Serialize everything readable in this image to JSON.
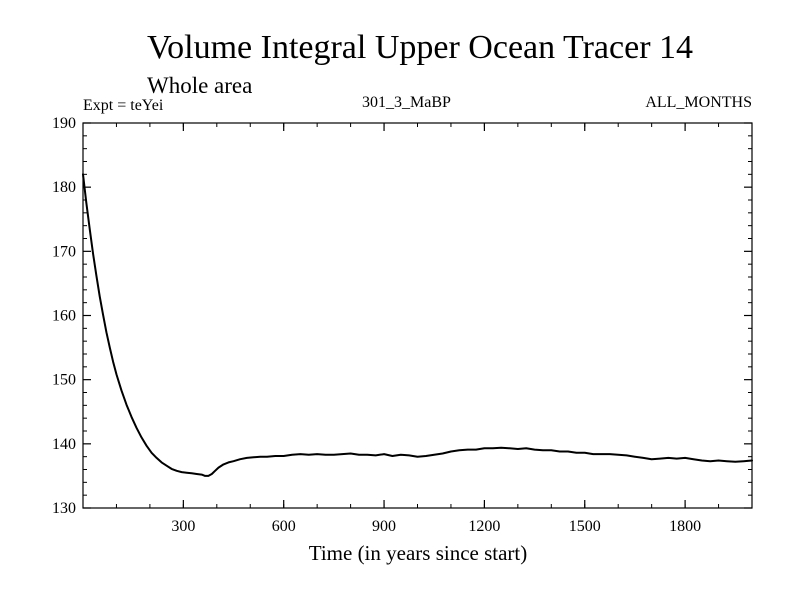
{
  "chart_data": {
    "type": "line",
    "title": "Volume Integral Upper Ocean Tracer 14",
    "subtitle": "Whole area",
    "expt_label": "Expt = teYei",
    "run_label": "301_3_MaBP",
    "months_label": "ALL_MONTHS",
    "xlabel": "Time (in years since start)",
    "ylabel": "",
    "xlim": [
      0,
      2000
    ],
    "ylim": [
      130,
      190
    ],
    "xticks": [
      300,
      600,
      900,
      1200,
      1500,
      1800
    ],
    "yticks": [
      130,
      140,
      150,
      160,
      170,
      180,
      190
    ],
    "xtick_labels": [
      "300",
      "600",
      "900",
      "1200",
      "1500",
      "1800"
    ],
    "ytick_labels": [
      "130",
      "140",
      "150",
      "160",
      "170",
      "180",
      "190"
    ],
    "line_color": "#000000",
    "series": [
      {
        "name": "Tracer 14",
        "x": [
          0,
          10,
          20,
          30,
          40,
          50,
          60,
          70,
          80,
          90,
          100,
          115,
          130,
          145,
          160,
          175,
          190,
          205,
          220,
          235,
          250,
          265,
          280,
          295,
          310,
          325,
          340,
          355,
          365,
          375,
          385,
          395,
          405,
          420,
          435,
          450,
          470,
          490,
          510,
          530,
          550,
          575,
          600,
          625,
          650,
          675,
          700,
          725,
          750,
          775,
          800,
          825,
          850,
          875,
          900,
          925,
          950,
          975,
          1000,
          1025,
          1050,
          1075,
          1100,
          1125,
          1150,
          1175,
          1200,
          1225,
          1250,
          1275,
          1300,
          1325,
          1350,
          1375,
          1400,
          1425,
          1450,
          1475,
          1500,
          1525,
          1550,
          1575,
          1600,
          1625,
          1650,
          1675,
          1700,
          1725,
          1750,
          1775,
          1800,
          1825,
          1850,
          1875,
          1900,
          1925,
          1950,
          1975,
          2000
        ],
        "values": [
          182.0,
          177.6,
          173.5,
          169.7,
          166.2,
          163.0,
          160.1,
          157.4,
          155.0,
          152.8,
          150.8,
          148.3,
          146.1,
          144.2,
          142.5,
          141.0,
          139.7,
          138.6,
          137.8,
          137.1,
          136.6,
          136.1,
          135.8,
          135.6,
          135.5,
          135.4,
          135.3,
          135.2,
          135.0,
          135.0,
          135.3,
          135.8,
          136.3,
          136.8,
          137.1,
          137.3,
          137.6,
          137.8,
          137.9,
          138.0,
          138.0,
          138.1,
          138.1,
          138.3,
          138.4,
          138.3,
          138.4,
          138.3,
          138.3,
          138.4,
          138.5,
          138.3,
          138.3,
          138.2,
          138.4,
          138.1,
          138.3,
          138.2,
          138.0,
          138.1,
          138.3,
          138.5,
          138.8,
          139.0,
          139.1,
          139.1,
          139.3,
          139.3,
          139.4,
          139.3,
          139.2,
          139.3,
          139.1,
          139.0,
          139.0,
          138.8,
          138.8,
          138.6,
          138.6,
          138.4,
          138.4,
          138.4,
          138.3,
          138.2,
          138.0,
          137.8,
          137.6,
          137.7,
          137.8,
          137.7,
          137.8,
          137.6,
          137.4,
          137.3,
          137.4,
          137.3,
          137.2,
          137.3,
          137.4
        ]
      }
    ]
  }
}
